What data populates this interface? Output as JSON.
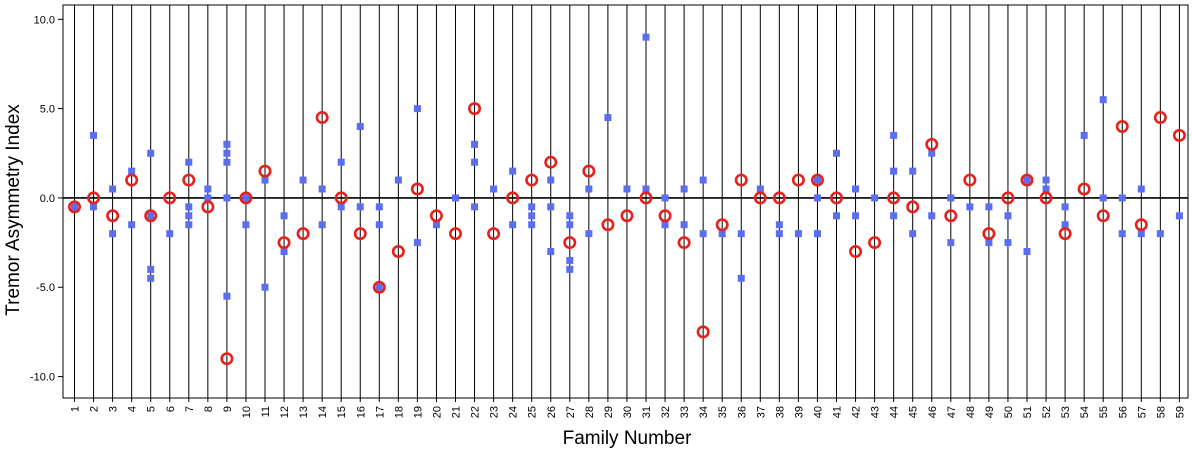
{
  "chart_data": {
    "type": "scatter",
    "title": "",
    "xlabel": "Family Number",
    "ylabel": "Tremor Asymmetry Index",
    "ylim": [
      -11.2,
      10.8
    ],
    "yticks": [
      10.0,
      5.0,
      0.0,
      -5.0,
      -10.0
    ],
    "ytick_labels": [
      "10.0",
      "5.0",
      "0.0",
      "-5.0",
      "-10.0"
    ],
    "reference_line_y": 0.0,
    "grid": "vertical lines at each family",
    "legend": "none",
    "colors": {
      "circle": "#e8201c",
      "square": "#5c6ef0",
      "lines": "#000000"
    },
    "families": [
      {
        "label": "1",
        "circles": [
          -0.5
        ],
        "squares": [
          -0.5
        ]
      },
      {
        "label": "2",
        "circles": [
          0.0
        ],
        "squares": [
          3.5,
          -0.5
        ]
      },
      {
        "label": "3",
        "circles": [
          -1.0
        ],
        "squares": [
          0.5,
          -2.0
        ]
      },
      {
        "label": "4",
        "circles": [
          1.0
        ],
        "squares": [
          1.5,
          -1.5
        ]
      },
      {
        "label": "5",
        "circles": [
          -1.0
        ],
        "squares": [
          2.5,
          -1.0,
          -4.0,
          -4.5
        ]
      },
      {
        "label": "6",
        "circles": [
          0.0
        ],
        "squares": [
          -2.0
        ]
      },
      {
        "label": "7",
        "circles": [
          1.0
        ],
        "squares": [
          2.0,
          -0.5,
          -1.0,
          -1.5
        ]
      },
      {
        "label": "8",
        "circles": [
          -0.5
        ],
        "squares": [
          0.5,
          0.0
        ]
      },
      {
        "label": "9",
        "circles": [
          -9.0
        ],
        "squares": [
          3.0,
          2.5,
          2.0,
          0.0,
          -5.5
        ]
      },
      {
        "label": "10",
        "circles": [
          0.0
        ],
        "squares": [
          0.0,
          -1.5
        ]
      },
      {
        "label": "11",
        "circles": [
          1.5
        ],
        "squares": [
          1.0,
          -5.0
        ]
      },
      {
        "label": "12",
        "circles": [
          -2.5
        ],
        "squares": [
          -1.0,
          -3.0
        ]
      },
      {
        "label": "13",
        "circles": [
          -2.0
        ],
        "squares": [
          1.0
        ]
      },
      {
        "label": "14",
        "circles": [
          4.5
        ],
        "squares": [
          0.5,
          -1.5
        ]
      },
      {
        "label": "15",
        "circles": [
          0.0
        ],
        "squares": [
          2.0,
          -0.5
        ]
      },
      {
        "label": "16",
        "circles": [
          -2.0
        ],
        "squares": [
          4.0,
          -0.5
        ]
      },
      {
        "label": "17",
        "circles": [
          -5.0
        ],
        "squares": [
          -0.5,
          -1.5,
          -5.0
        ]
      },
      {
        "label": "18",
        "circles": [
          -3.0
        ],
        "squares": [
          1.0
        ]
      },
      {
        "label": "19",
        "circles": [
          0.5
        ],
        "squares": [
          5.0,
          -2.5
        ]
      },
      {
        "label": "20",
        "circles": [
          -1.0
        ],
        "squares": [
          -1.5
        ]
      },
      {
        "label": "21",
        "circles": [
          -2.0
        ],
        "squares": [
          0.0
        ]
      },
      {
        "label": "22",
        "circles": [
          5.0
        ],
        "squares": [
          3.0,
          2.0,
          -0.5
        ]
      },
      {
        "label": "23",
        "circles": [
          -2.0
        ],
        "squares": [
          0.5
        ]
      },
      {
        "label": "24",
        "circles": [
          0.0
        ],
        "squares": [
          1.5,
          -1.5
        ]
      },
      {
        "label": "25",
        "circles": [
          1.0
        ],
        "squares": [
          -0.5,
          -1.0,
          -1.5
        ]
      },
      {
        "label": "26",
        "circles": [
          2.0
        ],
        "squares": [
          1.0,
          -0.5,
          -3.0
        ]
      },
      {
        "label": "27",
        "circles": [
          -2.5
        ],
        "squares": [
          -1.0,
          -1.5,
          -3.5,
          -4.0
        ]
      },
      {
        "label": "28",
        "circles": [
          1.5
        ],
        "squares": [
          0.5,
          -2.0
        ]
      },
      {
        "label": "29",
        "circles": [
          -1.5
        ],
        "squares": [
          4.5
        ]
      },
      {
        "label": "30",
        "circles": [
          -1.0
        ],
        "squares": [
          0.5
        ]
      },
      {
        "label": "31",
        "circles": [
          0.0
        ],
        "squares": [
          9.0,
          0.5
        ]
      },
      {
        "label": "32",
        "circles": [
          -1.0
        ],
        "squares": [
          0.0,
          -1.5
        ]
      },
      {
        "label": "33",
        "circles": [
          -2.5
        ],
        "squares": [
          0.5,
          -1.5
        ]
      },
      {
        "label": "34",
        "circles": [
          -7.5
        ],
        "squares": [
          1.0,
          -2.0
        ]
      },
      {
        "label": "35",
        "circles": [
          -1.5
        ],
        "squares": [
          -2.0
        ]
      },
      {
        "label": "36",
        "circles": [
          1.0
        ],
        "squares": [
          -2.0,
          -4.5
        ]
      },
      {
        "label": "37",
        "circles": [
          0.0
        ],
        "squares": [
          0.5
        ]
      },
      {
        "label": "38",
        "circles": [
          0.0
        ],
        "squares": [
          -1.5,
          -2.0
        ]
      },
      {
        "label": "39",
        "circles": [
          1.0
        ],
        "squares": [
          -2.0
        ]
      },
      {
        "label": "40",
        "circles": [
          1.0
        ],
        "squares": [
          1.0,
          0.0,
          -2.0
        ]
      },
      {
        "label": "41",
        "circles": [
          0.0
        ],
        "squares": [
          2.5,
          -1.0
        ]
      },
      {
        "label": "42",
        "circles": [
          -3.0
        ],
        "squares": [
          0.5,
          -1.0
        ]
      },
      {
        "label": "43",
        "circles": [
          -2.5
        ],
        "squares": [
          0.0
        ]
      },
      {
        "label": "44",
        "circles": [
          0.0
        ],
        "squares": [
          3.5,
          1.5,
          -1.0
        ]
      },
      {
        "label": "45",
        "circles": [
          -0.5
        ],
        "squares": [
          1.5,
          -2.0
        ]
      },
      {
        "label": "46",
        "circles": [
          3.0
        ],
        "squares": [
          2.5,
          -1.0
        ]
      },
      {
        "label": "47",
        "circles": [
          -1.0
        ],
        "squares": [
          0.0,
          -2.5
        ]
      },
      {
        "label": "48",
        "circles": [
          1.0
        ],
        "squares": [
          -0.5
        ]
      },
      {
        "label": "49",
        "circles": [
          -2.0
        ],
        "squares": [
          -0.5,
          -2.5
        ]
      },
      {
        "label": "50",
        "circles": [
          0.0
        ],
        "squares": [
          -1.0,
          -2.5
        ]
      },
      {
        "label": "51",
        "circles": [
          1.0
        ],
        "squares": [
          1.0,
          -3.0
        ]
      },
      {
        "label": "52",
        "circles": [
          0.0
        ],
        "squares": [
          1.0,
          0.5
        ]
      },
      {
        "label": "53",
        "circles": [
          -2.0
        ],
        "squares": [
          -0.5,
          -1.5
        ]
      },
      {
        "label": "54",
        "circles": [
          0.5
        ],
        "squares": [
          3.5
        ]
      },
      {
        "label": "55",
        "circles": [
          -1.0
        ],
        "squares": [
          5.5,
          0.0
        ]
      },
      {
        "label": "56",
        "circles": [
          4.0
        ],
        "squares": [
          0.0,
          -2.0
        ]
      },
      {
        "label": "57",
        "circles": [
          -1.5
        ],
        "squares": [
          0.5,
          -2.0
        ]
      },
      {
        "label": "58",
        "circles": [
          4.5
        ],
        "squares": [
          -2.0
        ]
      },
      {
        "label": "59",
        "circles": [
          3.5
        ],
        "squares": [
          -1.0
        ]
      }
    ]
  }
}
